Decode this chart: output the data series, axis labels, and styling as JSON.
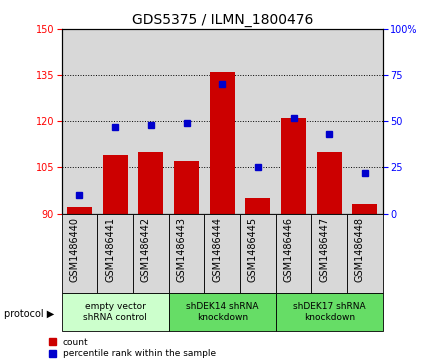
{
  "title": "GDS5375 / ILMN_1800476",
  "samples": [
    "GSM1486440",
    "GSM1486441",
    "GSM1486442",
    "GSM1486443",
    "GSM1486444",
    "GSM1486445",
    "GSM1486446",
    "GSM1486447",
    "GSM1486448"
  ],
  "count_values": [
    92,
    109,
    110,
    107,
    136,
    95,
    121,
    110,
    93
  ],
  "percentile_values": [
    10,
    47,
    48,
    49,
    70,
    25,
    52,
    43,
    22
  ],
  "ylim_left": [
    90,
    150
  ],
  "ylim_right": [
    0,
    100
  ],
  "yticks_left": [
    90,
    105,
    120,
    135,
    150
  ],
  "yticks_right": [
    0,
    25,
    50,
    75,
    100
  ],
  "bar_color": "#cc0000",
  "dot_color": "#0000cc",
  "groups": [
    {
      "label": "empty vector\nshRNA control",
      "start": 0,
      "end": 3,
      "color": "#ccffcc"
    },
    {
      "label": "shDEK14 shRNA\nknockdown",
      "start": 3,
      "end": 6,
      "color": "#66dd66"
    },
    {
      "label": "shDEK17 shRNA\nknockdown",
      "start": 6,
      "end": 9,
      "color": "#66dd66"
    }
  ],
  "protocol_label": "protocol",
  "legend_count_label": "count",
  "legend_percentile_label": "percentile rank within the sample",
  "sample_box_color": "#d8d8d8",
  "plot_bg": "#ffffff",
  "title_fontsize": 10,
  "tick_fontsize": 7,
  "label_fontsize": 7
}
